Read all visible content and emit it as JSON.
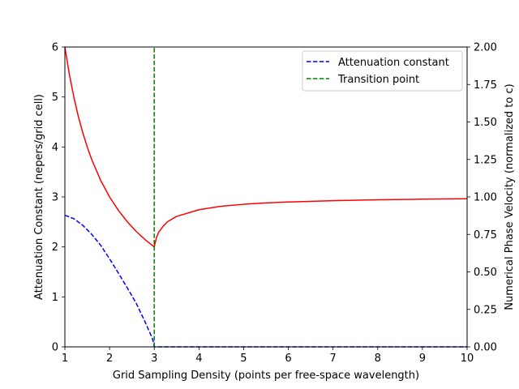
{
  "chart_data": {
    "type": "line",
    "title": "",
    "xlabel": "Grid Sampling Density (points per free-space wavelength)",
    "ylabel_left": "Attenuation Constant (nepers/grid cell)",
    "ylabel_right": "Numerical Phase Velocity (normalized to c)",
    "xlim": [
      1,
      10
    ],
    "ylim_left": [
      0,
      6
    ],
    "ylim_right": [
      0,
      2
    ],
    "x_ticks": [
      "1",
      "2",
      "3",
      "4",
      "5",
      "6",
      "7",
      "8",
      "9",
      "10"
    ],
    "y_ticks_left": [
      "0",
      "1",
      "2",
      "3",
      "4",
      "5",
      "6"
    ],
    "y_ticks_right": [
      "0.00",
      "0.25",
      "0.50",
      "0.75",
      "1.00",
      "1.25",
      "1.50",
      "1.75",
      "2.00"
    ],
    "grid": false,
    "legend_position": "top-right",
    "series": [
      {
        "name": "Attenuation constant",
        "axis": "left",
        "style": "dashed",
        "color": "#0000ff",
        "x": [
          1.0,
          1.2,
          1.4,
          1.6,
          1.8,
          2.0,
          2.2,
          2.4,
          2.6,
          2.8,
          2.9,
          2.95,
          2.99,
          3.0,
          4.0,
          5.0,
          6.0,
          7.0,
          8.0,
          9.0,
          10.0
        ],
        "y": [
          2.634,
          2.565,
          2.433,
          2.253,
          2.034,
          1.763,
          1.472,
          1.175,
          0.866,
          0.488,
          0.284,
          0.19,
          0.06,
          0.0,
          0.0,
          0.0,
          0.0,
          0.0,
          0.0,
          0.0,
          0.0
        ]
      },
      {
        "name": "",
        "axis": "right",
        "style": "solid",
        "color": "#ff0000",
        "x": [
          1.0,
          1.1,
          1.2,
          1.3,
          1.4,
          1.5,
          1.6,
          1.8,
          2.0,
          2.2,
          2.4,
          2.6,
          2.8,
          2.9,
          3.0,
          3.05,
          3.1,
          3.2,
          3.3,
          3.5,
          4.0,
          4.5,
          5.0,
          5.5,
          6.0,
          7.0,
          8.0,
          9.0,
          10.0
        ],
        "y": [
          2.0,
          1.818,
          1.667,
          1.538,
          1.429,
          1.333,
          1.25,
          1.111,
          1.0,
          0.909,
          0.833,
          0.769,
          0.714,
          0.69,
          0.667,
          0.73,
          0.765,
          0.805,
          0.835,
          0.87,
          0.915,
          0.938,
          0.951,
          0.96,
          0.966,
          0.975,
          0.981,
          0.985,
          0.988
        ]
      },
      {
        "name": "Transition point",
        "axis": "left",
        "style": "dashed",
        "color": "#008000",
        "x": [
          3.0,
          3.0
        ],
        "y": [
          0,
          6
        ]
      }
    ]
  }
}
